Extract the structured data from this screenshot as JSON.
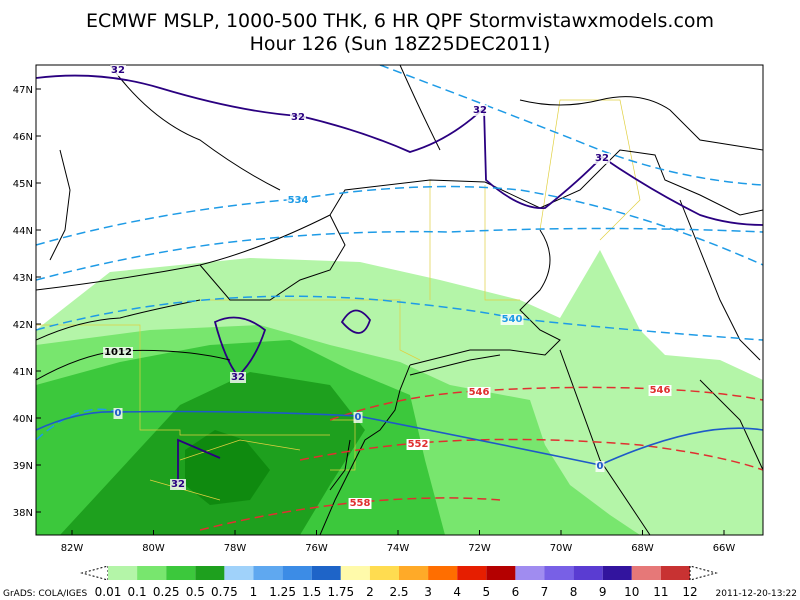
{
  "header": {
    "title": "ECMWF MSLP, 1000-500 THK, 6 HR QPF Stormvistawxmodels.com",
    "subtitle": "Hour 126 (Sun 18Z25DEC2011)"
  },
  "axes": {
    "lat_labels": [
      "47N",
      "46N",
      "45N",
      "44N",
      "43N",
      "42N",
      "41N",
      "40N",
      "39N",
      "38N"
    ],
    "lon_labels": [
      "82W",
      "80W",
      "78W",
      "76W",
      "74W",
      "72W",
      "70W",
      "68W",
      "66W"
    ]
  },
  "contour_labels": [
    {
      "text": "32",
      "kind": "freezing"
    },
    {
      "text": "32",
      "kind": "freezing"
    },
    {
      "text": "32",
      "kind": "freezing"
    },
    {
      "text": "32",
      "kind": "freezing"
    },
    {
      "text": "32",
      "kind": "freezing"
    },
    {
      "text": "32",
      "kind": "freezing"
    },
    {
      "text": "534",
      "kind": "thickness-cold"
    },
    {
      "text": "540",
      "kind": "thickness-cold"
    },
    {
      "text": "546",
      "kind": "thickness-warm"
    },
    {
      "text": "546",
      "kind": "thickness-warm"
    },
    {
      "text": "552",
      "kind": "thickness-warm"
    },
    {
      "text": "558",
      "kind": "thickness-warm"
    },
    {
      "text": "0",
      "kind": "zero"
    },
    {
      "text": "0",
      "kind": "zero"
    },
    {
      "text": "0",
      "kind": "zero"
    },
    {
      "text": "1012",
      "kind": "isobar"
    }
  ],
  "colorbar": {
    "labels": [
      "0.01",
      "0.1",
      "0.25",
      "0.5",
      "0.75",
      "1",
      "1.25",
      "1.5",
      "1.75",
      "2",
      "2.5",
      "3",
      "4",
      "5",
      "6",
      "7",
      "8",
      "9",
      "10",
      "11",
      "12"
    ],
    "colors": [
      "#b4f5a8",
      "#78e66e",
      "#3cc83c",
      "#1ea01e",
      "#a0d2fa",
      "#5fa8f0",
      "#3c8ce6",
      "#1e64c8",
      "#fffaaa",
      "#ffdc50",
      "#ffaa28",
      "#ff6e00",
      "#e61e00",
      "#b40000",
      "#a08cf0",
      "#7860e6",
      "#5a3cd2",
      "#32149e",
      "#e67878",
      "#c83232"
    ]
  },
  "footer": {
    "left": "GrADS: COLA/IGES",
    "right": "2011-12-20-13:22"
  }
}
